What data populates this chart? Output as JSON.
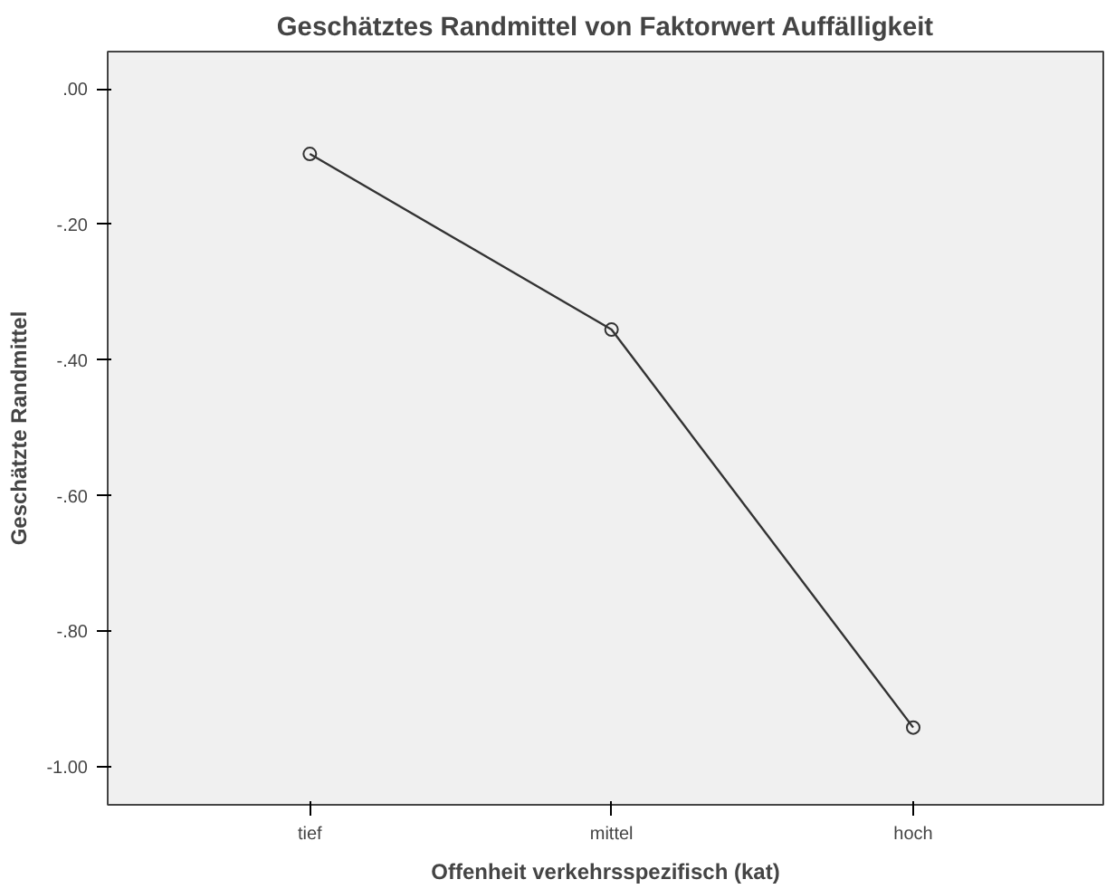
{
  "chart_data": {
    "type": "line",
    "title": "Geschätztes Randmittel von Faktorwert Auffälligkeit",
    "xlabel": "Offenheit verkehrsspezifisch (kat)",
    "ylabel": "Geschätzte Randmittel",
    "categories": [
      "tief",
      "mittel",
      "hoch"
    ],
    "series": [
      {
        "color": "#333333",
        "values": [
          -0.096,
          -0.355,
          -0.942
        ]
      }
    ],
    "ylim": [
      -1.056,
      0.055
    ],
    "yticks": [
      {
        "value": 0,
        "label": ".00"
      },
      {
        "value": -0.2,
        "label": "-.20"
      },
      {
        "value": -0.4,
        "label": "-.40"
      },
      {
        "value": -0.6,
        "label": "-.60"
      },
      {
        "value": -0.8,
        "label": "-.80"
      },
      {
        "value": -1.0,
        "label": "-1.00"
      }
    ],
    "grid": false,
    "marker": "circle",
    "line_style": "solid"
  }
}
